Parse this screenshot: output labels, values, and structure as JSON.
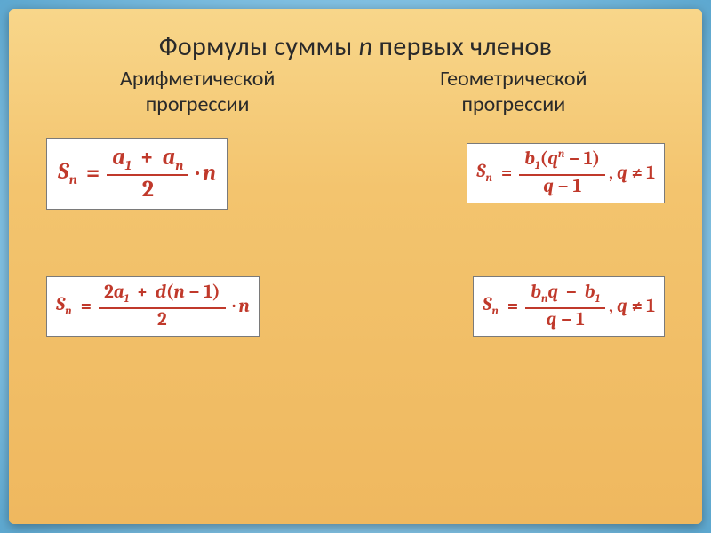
{
  "slide": {
    "background_gradient": [
      "#f8d68a",
      "#f3c46e",
      "#efb85f"
    ],
    "outer_background": "radial #bde4f5 → #5da8d0",
    "shadow_color": "rgba(0,0,0,0.35)"
  },
  "title": {
    "parts": [
      "Формулы суммы ",
      "n",
      " первых членов"
    ],
    "italic_index": 1,
    "fontsize": 30,
    "color": "#2a2a2a"
  },
  "subheadings": {
    "left_l1": "Арифметической",
    "left_l2": "прогрессии",
    "right_l1": "Геометрической",
    "right_l2": "прогрессии",
    "fontsize": 24,
    "color": "#2a2a2a"
  },
  "formulas": {
    "color": "#c0392b",
    "box_border": "#7a7a7a",
    "box_bg": "#ffffff",
    "fontsize_big": 26,
    "fontsize_small": 21,
    "arith_top": {
      "lhs": "S",
      "lhs_sub": "n",
      "num_a1": "a",
      "num_a1_sub": "1",
      "plus": "+",
      "num_an": "a",
      "num_an_sub": "n",
      "den": "2",
      "tail_op": "·",
      "tail_n": "n"
    },
    "geom_top": {
      "lhs": "S",
      "lhs_sub": "n",
      "num_b1": "b",
      "num_b1_sub": "1",
      "num_open": "(",
      "num_q": "q",
      "num_q_sup": "n",
      "num_minus": "−",
      "num_one": "1",
      "num_close": ")",
      "den_q": "q",
      "den_minus": "−",
      "den_one": "1",
      "comma": ",",
      "cond_q": "q",
      "cond_ne": "≠",
      "cond_one": "1"
    },
    "arith_bot": {
      "lhs": "S",
      "lhs_sub": "n",
      "num_2": "2",
      "num_a1": "a",
      "num_a1_sub": "1",
      "plus": "+",
      "d": "d",
      "open": "(",
      "n": "n",
      "minus": "−",
      "one": "1",
      "close": ")",
      "den": "2",
      "tail_op": "·",
      "tail_n": "n"
    },
    "geom_bot": {
      "lhs": "S",
      "lhs_sub": "n",
      "num_bn": "b",
      "num_bn_sub": "n",
      "num_q": "q",
      "num_minus": "−",
      "num_b1": "b",
      "num_b1_sub": "1",
      "den_q": "q",
      "den_minus": "−",
      "den_one": "1",
      "comma": ",",
      "cond_q": "q",
      "cond_ne": "≠",
      "cond_one": "1"
    }
  }
}
